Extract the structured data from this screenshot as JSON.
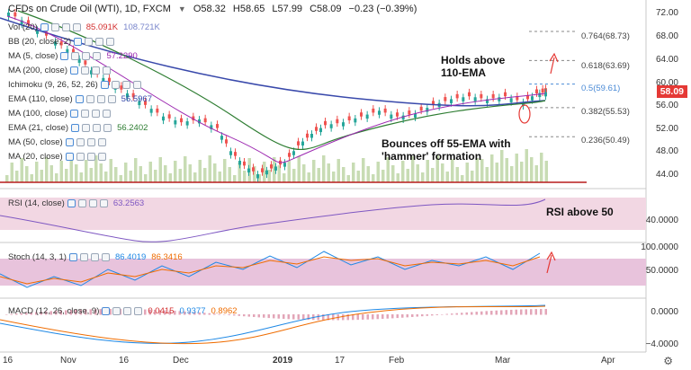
{
  "header": {
    "symbol": "CFDs on Crude Oil (WTI), 1D, FXCM",
    "chevron": "chevron-down-icon",
    "open": "O58.32",
    "high": "H58.65",
    "low": "L57.99",
    "close": "C58.09",
    "change": "−0.23 (−0.39%)"
  },
  "indicators": [
    {
      "label": "Vol (20)",
      "values": [
        "85.091K",
        "108.721K"
      ],
      "colors": [
        "#d32f2f",
        "#7986cb"
      ]
    },
    {
      "label": "BB (20, close, 2)",
      "values": [],
      "colors": []
    },
    {
      "label": "MA (5, close)",
      "values": [
        "57.2290"
      ],
      "colors": [
        "#9c27b0"
      ]
    },
    {
      "label": "MA (200, close)",
      "values": [],
      "colors": []
    },
    {
      "label": "Ichimoku (9, 26, 52, 26)",
      "values": [],
      "colors": []
    },
    {
      "label": "EMA (110, close)",
      "values": [
        "56.5967"
      ],
      "colors": [
        "#3949ab"
      ]
    },
    {
      "label": "MA (100, close)",
      "values": [],
      "colors": []
    },
    {
      "label": "EMA (21, close)",
      "values": [
        "56.2402"
      ],
      "colors": [
        "#2e7d32"
      ]
    },
    {
      "label": "MA (50, close)",
      "values": [],
      "colors": []
    },
    {
      "label": "MA (20, close)",
      "values": [],
      "colors": []
    }
  ],
  "annotations": {
    "holds_line1": "Holds above",
    "holds_line2": "110-EMA",
    "bounces_line1": "Bounces off 55-EMA with",
    "bounces_line2": "'hammer' formation",
    "rsi_note": "RSI above 50"
  },
  "fib_levels": [
    "0.764(68.73)",
    "0.618(63.69)",
    "0.5(59.61)",
    "0.382(55.53)",
    "0.236(50.49)"
  ],
  "price_axis": [
    "72.00",
    "68.00",
    "64.00",
    "60.00",
    "56.00",
    "52.00",
    "48.00",
    "44.00"
  ],
  "last_price": "58.09",
  "rsi": {
    "label": "RSI (14, close)",
    "value": "63.2563",
    "axis": "40.0000"
  },
  "stoch": {
    "label": "Stoch (14, 3, 1)",
    "k": "86.4019",
    "d": "86.3416",
    "axis": [
      "100.0000",
      "50.0000"
    ]
  },
  "macd": {
    "label": "MACD (12, 26, close, 9)",
    "v1": "0.0415",
    "v2": "0.9377",
    "v3": "0.8962",
    "axis": [
      "0.0000",
      "−4.0000"
    ]
  },
  "time_axis": [
    "16",
    "Nov",
    "16",
    "Dec",
    "2019",
    "17",
    "Feb",
    "Mar",
    "Apr"
  ],
  "icons": {
    "settings": "gear-icon"
  },
  "colors": {
    "up": "#26a69a",
    "down": "#ef5350",
    "ema110": "#3949ab",
    "ema21": "#2e7d32",
    "ma5": "#9c27b0",
    "rsi_band": "#f2d7e3",
    "stoch_band": "#e8c3dc"
  },
  "chart_data": {
    "type": "line",
    "series": [
      {
        "name": "EMA (110, close)",
        "values": []
      },
      {
        "name": "EMA (21, close)",
        "values": []
      },
      {
        "name": "MA (5, close)",
        "values": []
      }
    ]
  }
}
